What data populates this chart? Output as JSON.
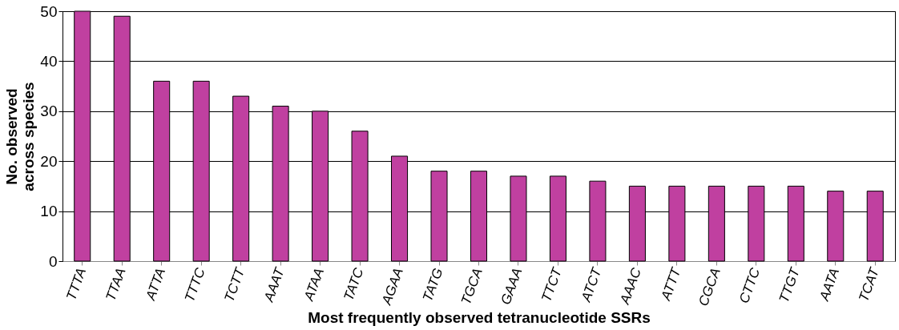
{
  "chart_data": {
    "type": "bar",
    "xlabel": "Most frequently observed tetranucleotide SSRs",
    "ylabel": "No. observed\nacross species",
    "categories": [
      "TTTA",
      "TTAA",
      "ATTA",
      "TTTC",
      "TCTT",
      "AAAT",
      "ATAA",
      "TATC",
      "AGAA",
      "TATG",
      "TGCA",
      "GAAA",
      "TTCT",
      "ATCT",
      "AAAC",
      "ATTT",
      "CGCA",
      "CTTC",
      "TTGT",
      "AATA",
      "TCAT"
    ],
    "values": [
      50,
      49,
      36,
      36,
      33,
      31,
      30,
      26,
      21,
      18,
      18,
      17,
      17,
      16,
      15,
      15,
      15,
      15,
      15,
      14,
      14
    ],
    "color": "#c040a0",
    "ylim": [
      0,
      50
    ],
    "yticks": [
      0,
      10,
      20,
      30,
      40,
      50
    ],
    "grid": "y"
  }
}
